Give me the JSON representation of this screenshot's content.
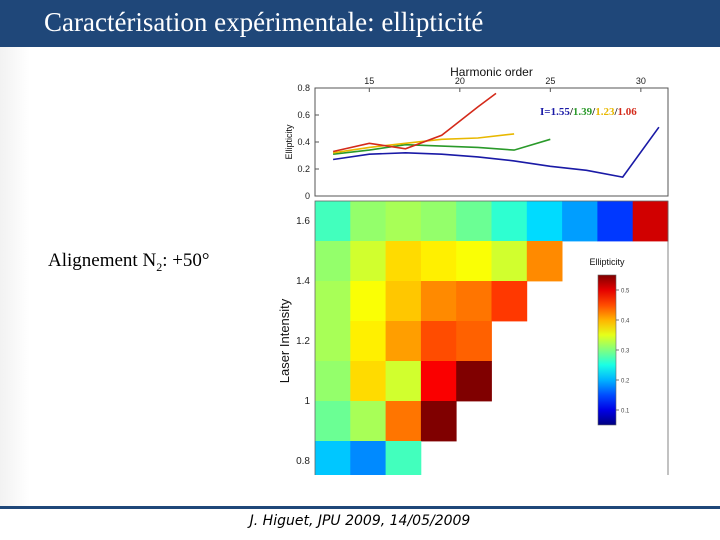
{
  "slide": {
    "title": "Caractérisation expérimentale: ellipticité",
    "side_label_prefix": "Alignement N",
    "side_label_sub": "2",
    "side_label_suffix": ": +50°",
    "footer": "J. Higuet, JPU 2009, 14/05/2009",
    "colors": {
      "title_bar": "#1f4779",
      "footer_line": "#1f4779"
    }
  },
  "chart_data": [
    {
      "type": "line",
      "xlabel": "Harmonic order",
      "ylabel": "Ellipticity",
      "xlim": [
        12,
        31.5
      ],
      "ylim": [
        0,
        0.8
      ],
      "x_ticks": [
        "15",
        "20",
        "25",
        "30"
      ],
      "y_ticks": [
        "0",
        "0.2",
        "0.4",
        "0.6",
        "0.8"
      ],
      "annotation": {
        "prefix": "I=",
        "parts": [
          "1.55",
          "1.39",
          "1.23",
          "1.06"
        ],
        "sep": "/"
      },
      "series": [
        {
          "color": "#1a1aa6",
          "x": [
            13,
            15,
            17,
            19,
            21,
            23,
            25,
            27,
            29,
            31
          ],
          "y": [
            0.27,
            0.31,
            0.32,
            0.31,
            0.29,
            0.26,
            0.22,
            0.19,
            0.14,
            0.51
          ]
        },
        {
          "color": "#2a9a2a",
          "x": [
            13,
            15,
            17,
            19,
            21,
            23,
            25
          ],
          "y": [
            0.31,
            0.34,
            0.38,
            0.37,
            0.36,
            0.34,
            0.42
          ]
        },
        {
          "color": "#e8b800",
          "x": [
            13,
            15,
            17,
            19,
            21,
            23
          ],
          "y": [
            0.32,
            0.36,
            0.39,
            0.42,
            0.43,
            0.46
          ]
        },
        {
          "color": "#d42a1a",
          "x": [
            13,
            15,
            17,
            19,
            21,
            22
          ],
          "y": [
            0.33,
            0.39,
            0.35,
            0.45,
            0.66,
            0.76
          ]
        }
      ]
    },
    {
      "type": "heatmap",
      "xlabel": "Harmonic order",
      "ylabel": "Laser Intensity",
      "x_ticks": [
        "15",
        "20",
        "25",
        "30"
      ],
      "y_ticks": [
        "0.8",
        "1",
        "1.2",
        "1.4",
        "1.6"
      ],
      "colorbar_title": "Ellipticity",
      "colorbar_ticks": [
        "0.1",
        "0.2",
        "0.3",
        "0.4",
        "0.5"
      ],
      "colorbar_range": [
        0.05,
        0.55
      ],
      "columns": [
        13,
        15,
        17,
        19,
        21,
        23,
        25,
        27,
        29,
        31
      ],
      "rows": [
        {
          "values": [
            0.27,
            0.31,
            0.32,
            0.31,
            0.29,
            0.26,
            0.22,
            0.19,
            0.14,
            0.51
          ]
        },
        {
          "values": [
            0.31,
            0.34,
            0.38,
            0.37,
            0.36,
            0.34,
            0.42
          ]
        },
        {
          "values": [
            0.32,
            0.36,
            0.39,
            0.42,
            0.43,
            0.46
          ]
        },
        {
          "values": [
            0.32,
            0.37,
            0.41,
            0.45,
            0.44
          ]
        },
        {
          "values": [
            0.31,
            0.38,
            0.34,
            0.49,
            0.56
          ]
        },
        {
          "values": [
            0.29,
            0.32,
            0.43,
            0.56
          ]
        },
        {
          "values": [
            0.21,
            0.18,
            0.27
          ]
        }
      ]
    }
  ]
}
